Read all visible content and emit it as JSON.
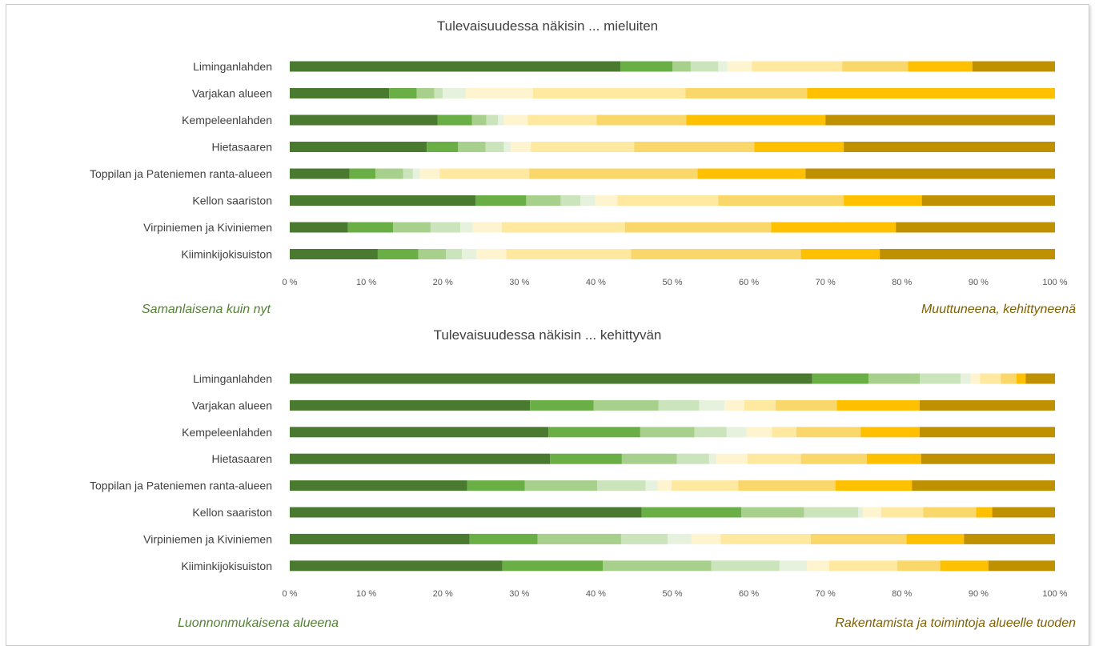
{
  "palette": [
    "#4a7a2f",
    "#6aaf45",
    "#a8d08d",
    "#cce4bc",
    "#e6f2de",
    "#fff4d0",
    "#ffe8a0",
    "#fad76a",
    "#ffc000",
    "#bf9000"
  ],
  "chart_data": [
    {
      "type": "bar",
      "orientation": "horizontal",
      "stacked": "100%",
      "title": "Tulevaisuudessa näkisin ... mieluiten",
      "categories": [
        "Liminganlahden",
        "Varjakan alueen",
        "Kempeleenlahden",
        "Hietasaaren",
        "Toppilan ja Pateniemen ranta-alueen",
        "Kellon saariston",
        "Virpiniemen ja Kiviniemen",
        "Kiiminkijokisuiston"
      ],
      "xlim": [
        0,
        100
      ],
      "x_ticks": [
        "0 %",
        "10 %",
        "20 %",
        "30 %",
        "40 %",
        "50 %",
        "60 %",
        "70 %",
        "80 %",
        "90 %",
        "100 %"
      ],
      "grid": false,
      "legend": "none",
      "scale_left_label": "Samanlaisena kuin nyt",
      "scale_right_label": "Muuttuneena, kehittyneenä",
      "rows": [
        [
          43.2,
          6.8,
          2.4,
          3.6,
          1.2,
          3.2,
          11.8,
          8.6,
          8.4,
          10.8
        ],
        [
          13.0,
          3.6,
          2.3,
          1.1,
          3.0,
          8.8,
          19.9,
          15.9,
          32.4,
          0.0
        ],
        [
          19.3,
          4.5,
          1.9,
          1.5,
          0.8,
          3.1,
          9.0,
          11.7,
          18.2,
          30.0
        ],
        [
          17.9,
          4.1,
          3.6,
          2.4,
          0.9,
          2.6,
          13.5,
          15.7,
          11.7,
          27.6
        ],
        [
          7.8,
          3.4,
          3.6,
          1.3,
          0.9,
          2.6,
          11.7,
          22.0,
          14.1,
          32.6
        ],
        [
          24.3,
          6.6,
          4.5,
          2.6,
          1.9,
          2.9,
          13.2,
          16.4,
          10.2,
          17.4
        ],
        [
          7.6,
          5.9,
          4.9,
          3.9,
          1.6,
          3.8,
          16.1,
          19.1,
          16.3,
          20.8
        ],
        [
          11.5,
          5.3,
          3.6,
          2.1,
          1.9,
          3.9,
          16.3,
          22.2,
          10.3,
          22.9
        ]
      ]
    },
    {
      "type": "bar",
      "orientation": "horizontal",
      "stacked": "100%",
      "title": "Tulevaisuudessa näkisin ... kehittyvän",
      "categories": [
        "Liminganlahden",
        "Varjakan alueen",
        "Kempeleenlahden",
        "Hietasaaren",
        "Toppilan ja Pateniemen ranta-alueen",
        "Kellon saariston",
        "Virpiniemen ja Kiviniemen",
        "Kiiminkijokisuiston"
      ],
      "xlim": [
        0,
        100
      ],
      "x_ticks": [
        "0 %",
        "10 %",
        "20 %",
        "30 %",
        "40 %",
        "50 %",
        "60 %",
        "70 %",
        "80 %",
        "90 %",
        "100 %"
      ],
      "grid": false,
      "legend": "none",
      "scale_left_label": "Luonnonmukaisena alueena",
      "scale_right_label": "Rakentamista ja toimintoja alueelle tuoden",
      "rows": [
        [
          67.6,
          7.3,
          6.6,
          5.3,
          1.3,
          1.2,
          2.7,
          2.0,
          1.2,
          3.8
        ],
        [
          31.4,
          8.3,
          8.5,
          5.3,
          3.3,
          2.6,
          4.1,
          8.0,
          10.8,
          17.7
        ],
        [
          33.8,
          12.0,
          7.1,
          4.2,
          2.6,
          3.3,
          3.2,
          8.4,
          7.7,
          17.7
        ],
        [
          34.0,
          9.4,
          7.2,
          4.2,
          0.9,
          4.1,
          7.0,
          8.6,
          7.1,
          17.5
        ],
        [
          23.2,
          7.5,
          9.5,
          6.3,
          1.6,
          1.8,
          8.7,
          12.7,
          10.0,
          18.7
        ],
        [
          46.0,
          13.0,
          8.2,
          7.1,
          0.6,
          2.4,
          5.5,
          6.9,
          2.1,
          8.2
        ],
        [
          23.5,
          8.9,
          10.9,
          6.1,
          3.1,
          3.8,
          11.8,
          12.5,
          7.5,
          11.9
        ],
        [
          27.8,
          13.1,
          14.2,
          8.9,
          3.6,
          2.9,
          8.9,
          5.6,
          6.3,
          8.7
        ]
      ]
    }
  ]
}
